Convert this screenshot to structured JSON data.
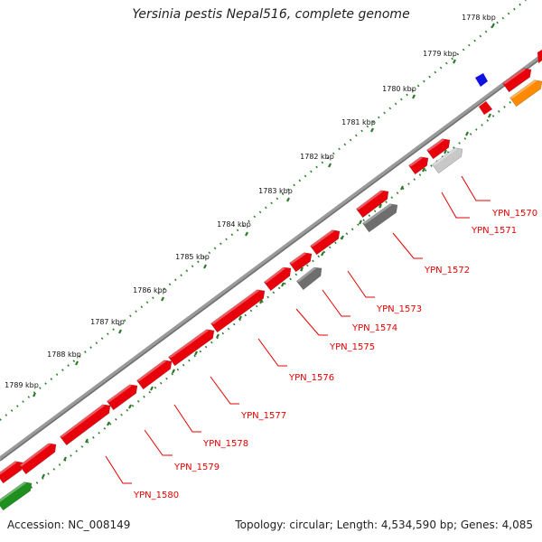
{
  "title": "Yersinia pestis Nepal516, complete genome",
  "accession_line": "Accession: NC_008149",
  "summary_line": "Topology: circular; Length: 4,534,590 bp; Genes: 4,085",
  "colors": {
    "backbone": "#808080",
    "gene_forward": "#e8000a",
    "gene_reverse_gray": "#6e6e6e",
    "gene_light_gray": "#c8c8c8",
    "gene_orange": "#ff8a00",
    "gene_green": "#1f8f1f",
    "gene_blue": "#1010e0",
    "tick_dots": "#2a7a2a",
    "label_red": "#e60000"
  },
  "kbp_ruler": {
    "labels": [
      "1778 kbp",
      "1779 kbp",
      "1780 kbp",
      "1781 kbp",
      "1782 kbp",
      "1783 kbp",
      "1784 kbp",
      "1785 kbp",
      "1786 kbp",
      "1787 kbp",
      "1788 kbp",
      "1789 kbp"
    ]
  },
  "gene_labels": [
    "YPN_1570",
    "YPN_1571",
    "YPN_1572",
    "YPN_1573",
    "YPN_1574",
    "YPN_1575",
    "YPN_1576",
    "YPN_1577",
    "YPN_1578",
    "YPN_1579",
    "YPN_1580"
  ]
}
